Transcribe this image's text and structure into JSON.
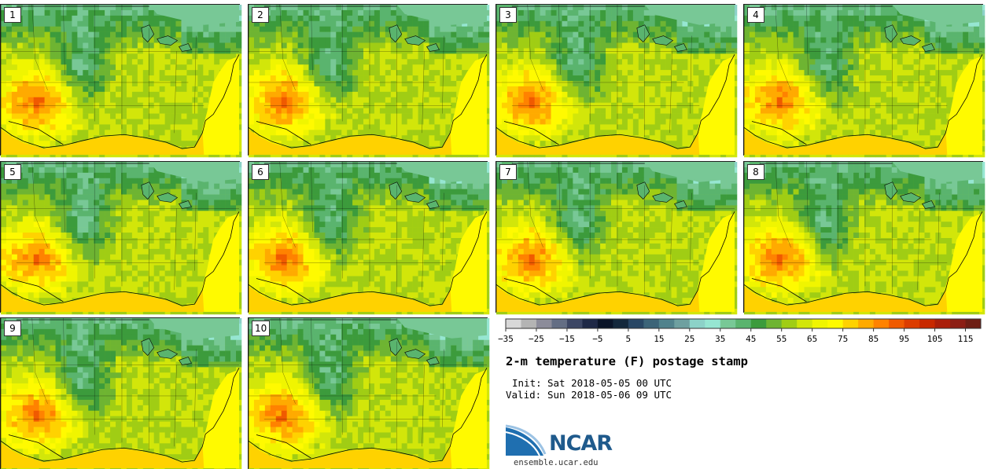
{
  "chart_data": {
    "type": "heatmap",
    "title": "2-m temperature (F) postage stamp",
    "variable": "2-m temperature",
    "units": "F",
    "panels": [
      {
        "label": "1"
      },
      {
        "label": "2"
      },
      {
        "label": "3"
      },
      {
        "label": "4"
      },
      {
        "label": "5"
      },
      {
        "label": "6"
      },
      {
        "label": "7"
      },
      {
        "label": "8"
      },
      {
        "label": "9"
      },
      {
        "label": "10"
      }
    ],
    "colorbar": {
      "min": -35,
      "max": 120,
      "step": 5,
      "tick_labels": [
        "−35",
        "−25",
        "−15",
        "−5",
        "5",
        "15",
        "25",
        "35",
        "45",
        "55",
        "65",
        "75",
        "85",
        "95",
        "105",
        "115"
      ],
      "colors": [
        "#d8d8d8",
        "#b4b4b4",
        "#8c8c9a",
        "#646e84",
        "#3c4664",
        "#1e2846",
        "#0a1428",
        "#14283c",
        "#284664",
        "#3c6478",
        "#50828c",
        "#6ea0a0",
        "#8cd2c8",
        "#96e6d2",
        "#78c896",
        "#5ab46e",
        "#3c9b3c",
        "#6eb432",
        "#a0cd14",
        "#d2e60a",
        "#f0f500",
        "#fffa00",
        "#ffd200",
        "#ffaa00",
        "#ff8200",
        "#f05a00",
        "#dc3c00",
        "#c82800",
        "#aa1e0a",
        "#8c1e14",
        "#6e1e14"
      ]
    },
    "init_label": "Init:",
    "init_value": "Sat 2018-05-05 00 UTC",
    "valid_label": "Valid:",
    "valid_value": "Sun 2018-05-06 09 UTC"
  },
  "branding": {
    "logo_text": "NCAR",
    "url": "ensemble.ucar.edu",
    "logo_color": "#1f5a8c"
  }
}
